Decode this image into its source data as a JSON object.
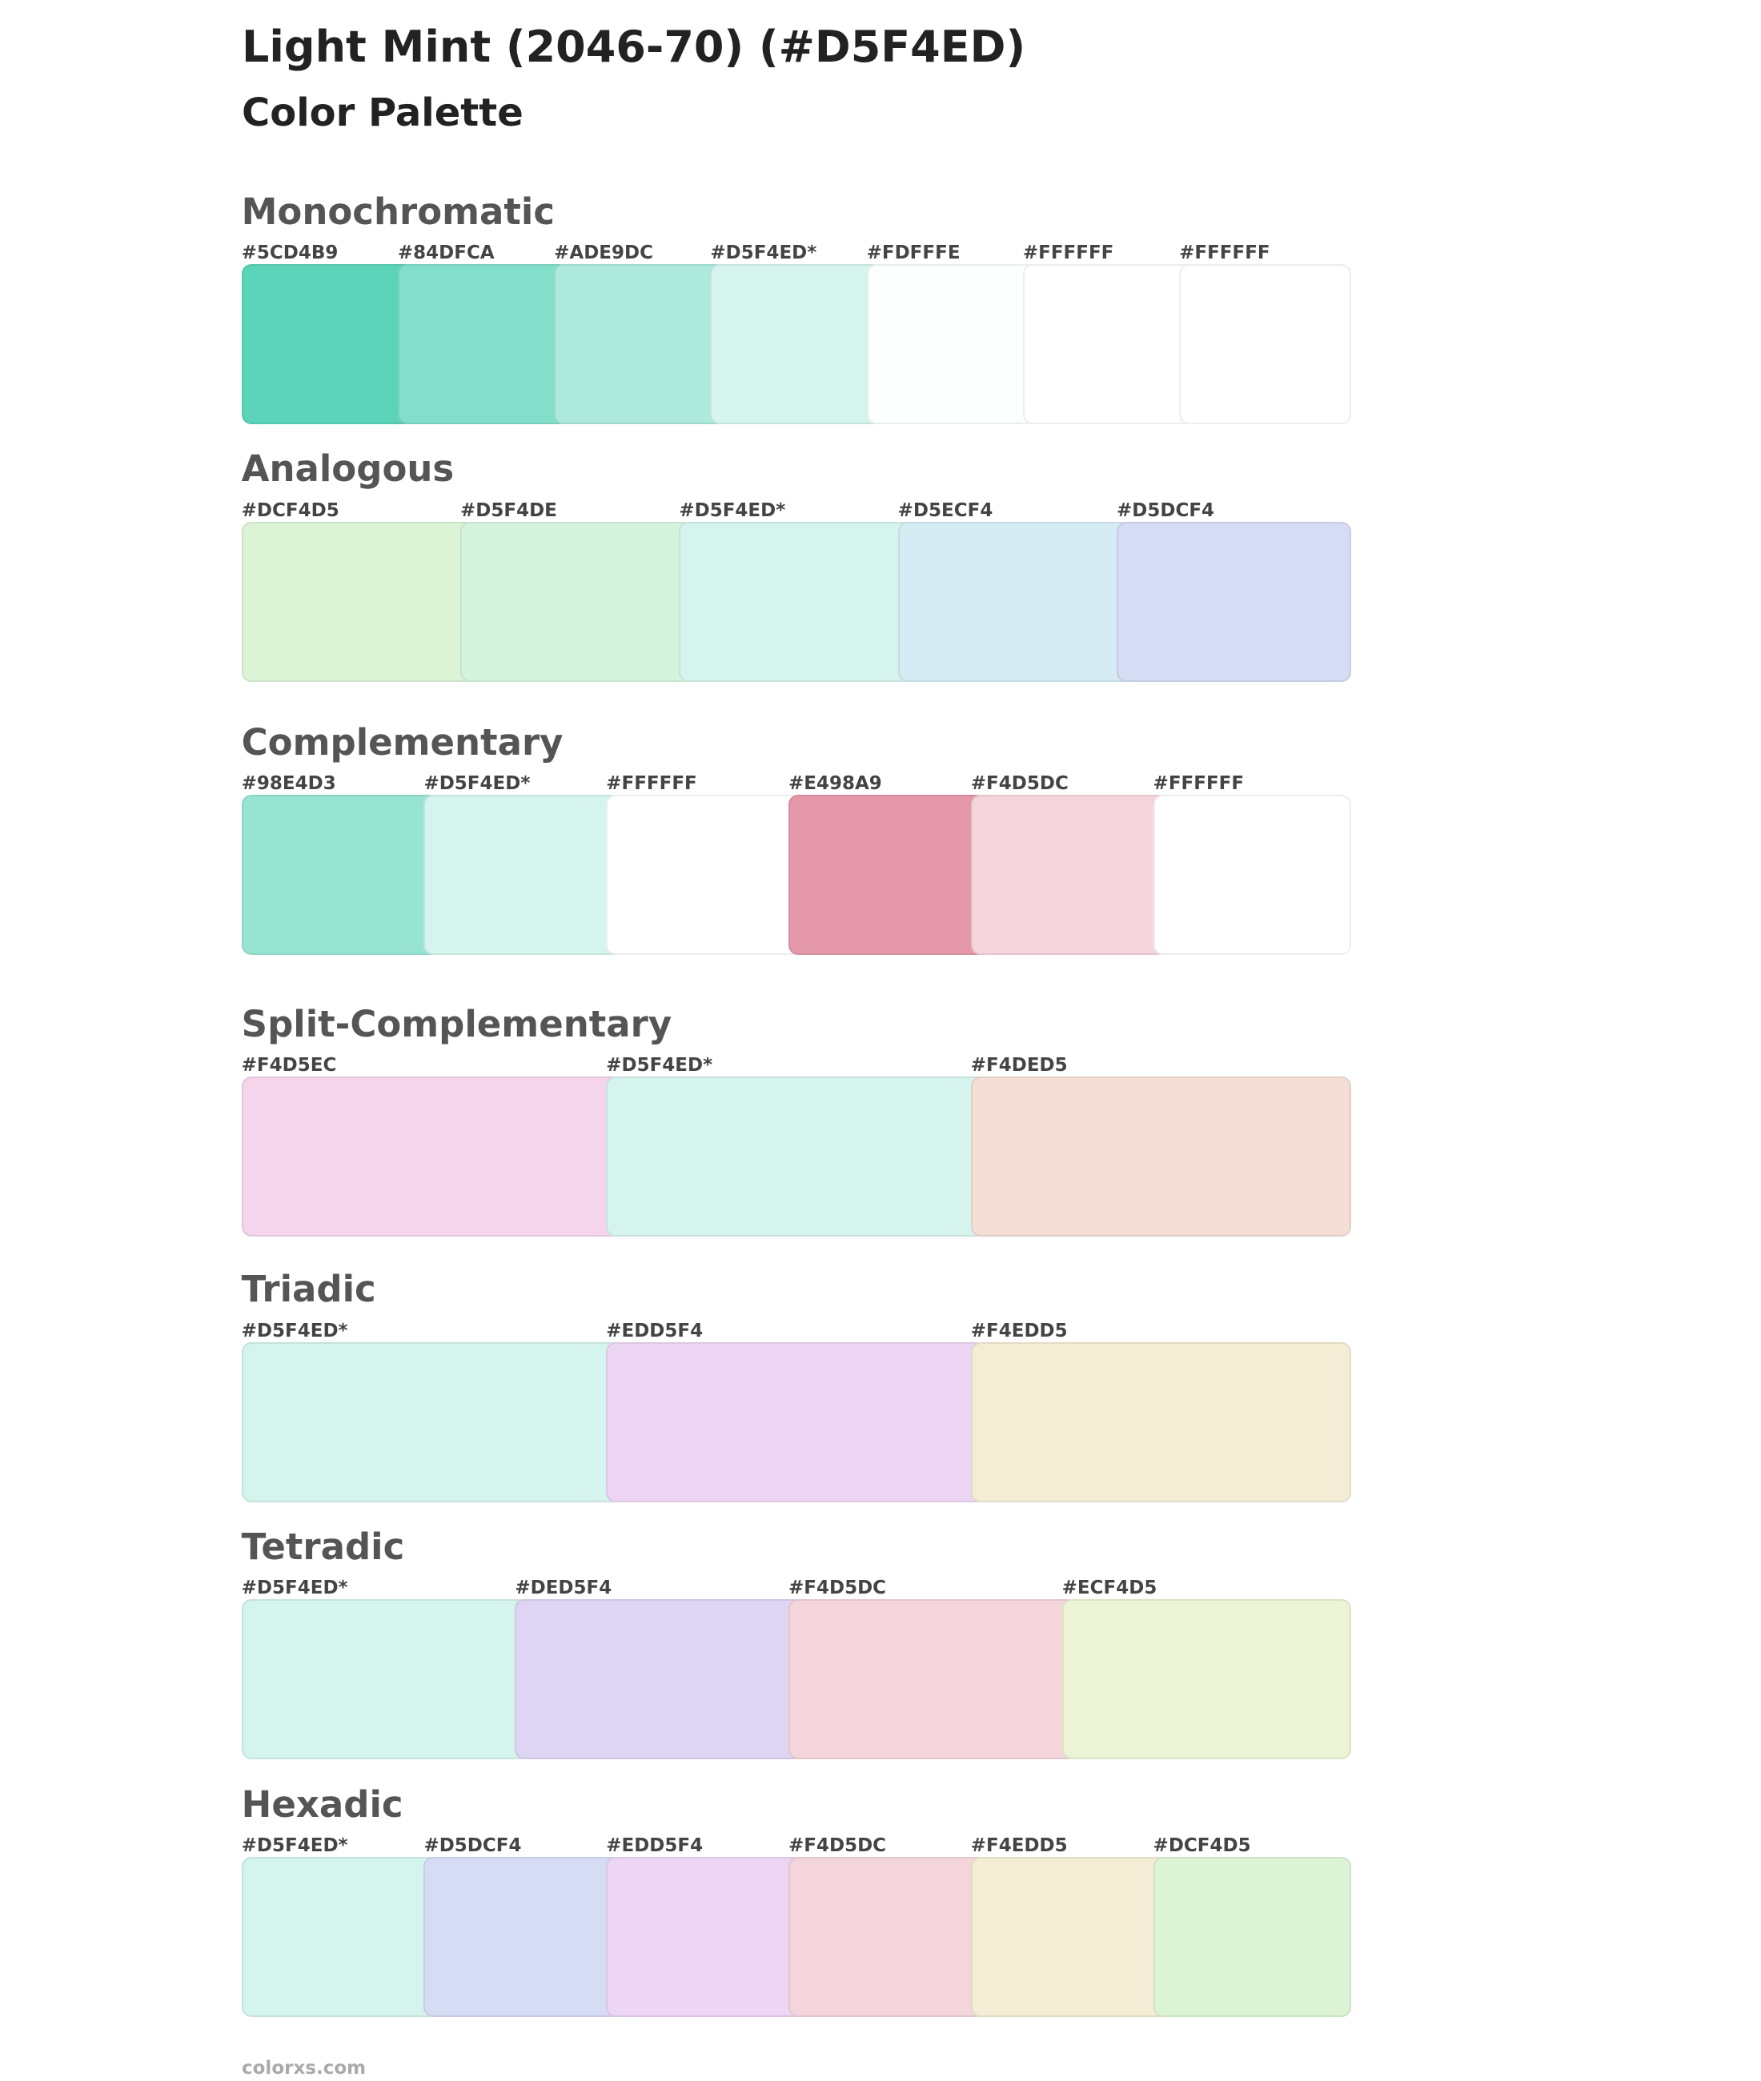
{
  "header": {
    "title": "Light Mint (2046-70) (#D5F4ED)",
    "subtitle": "Color Palette"
  },
  "sections": [
    {
      "title": "Monochromatic",
      "swatches": [
        {
          "label": "#5CD4B9",
          "color": "#5CD4B9"
        },
        {
          "label": "#84DFCA",
          "color": "#84DFCA"
        },
        {
          "label": "#ADE9DC",
          "color": "#ADE9DC"
        },
        {
          "label": "#D5F4ED*",
          "color": "#D5F4ED"
        },
        {
          "label": "#FDFFFE",
          "color": "#FDFFFE"
        },
        {
          "label": "#FFFFFF",
          "color": "#FFFFFF"
        },
        {
          "label": "#FFFFFF",
          "color": "#FFFFFF"
        }
      ]
    },
    {
      "title": "Analogous",
      "swatches": [
        {
          "label": "#DCF4D5",
          "color": "#DCF4D5"
        },
        {
          "label": "#D5F4DE",
          "color": "#D5F4DE"
        },
        {
          "label": "#D5F4ED*",
          "color": "#D5F4ED"
        },
        {
          "label": "#D5ECF4",
          "color": "#D5ECF4"
        },
        {
          "label": "#D5DCF4",
          "color": "#D5DCF4"
        }
      ]
    },
    {
      "title": "Complementary",
      "swatches": [
        {
          "label": "#98E4D3",
          "color": "#98E4D3"
        },
        {
          "label": "#D5F4ED*",
          "color": "#D5F4ED"
        },
        {
          "label": "#FFFFFF",
          "color": "#FFFFFF"
        },
        {
          "label": "#E498A9",
          "color": "#E498A9"
        },
        {
          "label": "#F4D5DC",
          "color": "#F4D5DC"
        },
        {
          "label": "#FFFFFF",
          "color": "#FFFFFF"
        }
      ]
    },
    {
      "title": "Split-Complementary",
      "swatches": [
        {
          "label": "#F4D5EC",
          "color": "#F4D5EC"
        },
        {
          "label": "#D5F4ED*",
          "color": "#D5F4ED"
        },
        {
          "label": "#F4DED5",
          "color": "#F4DED5"
        }
      ]
    },
    {
      "title": "Triadic",
      "swatches": [
        {
          "label": "#D5F4ED*",
          "color": "#D5F4ED"
        },
        {
          "label": "#EDD5F4",
          "color": "#EDD5F4"
        },
        {
          "label": "#F4EDD5",
          "color": "#F4EDD5"
        }
      ]
    },
    {
      "title": "Tetradic",
      "swatches": [
        {
          "label": "#D5F4ED*",
          "color": "#D5F4ED"
        },
        {
          "label": "#DED5F4",
          "color": "#DED5F4"
        },
        {
          "label": "#F4D5DC",
          "color": "#F4D5DC"
        },
        {
          "label": "#ECF4D5",
          "color": "#ECF4D5"
        }
      ]
    },
    {
      "title": "Hexadic",
      "swatches": [
        {
          "label": "#D5F4ED*",
          "color": "#D5F4ED"
        },
        {
          "label": "#D5DCF4",
          "color": "#D5DCF4"
        },
        {
          "label": "#EDD5F4",
          "color": "#EDD5F4"
        },
        {
          "label": "#F4D5DC",
          "color": "#F4D5DC"
        },
        {
          "label": "#F4EDD5",
          "color": "#F4EDD5"
        },
        {
          "label": "#DCF4D5",
          "color": "#DCF4D5"
        }
      ]
    }
  ],
  "footer": "colorxs.com"
}
